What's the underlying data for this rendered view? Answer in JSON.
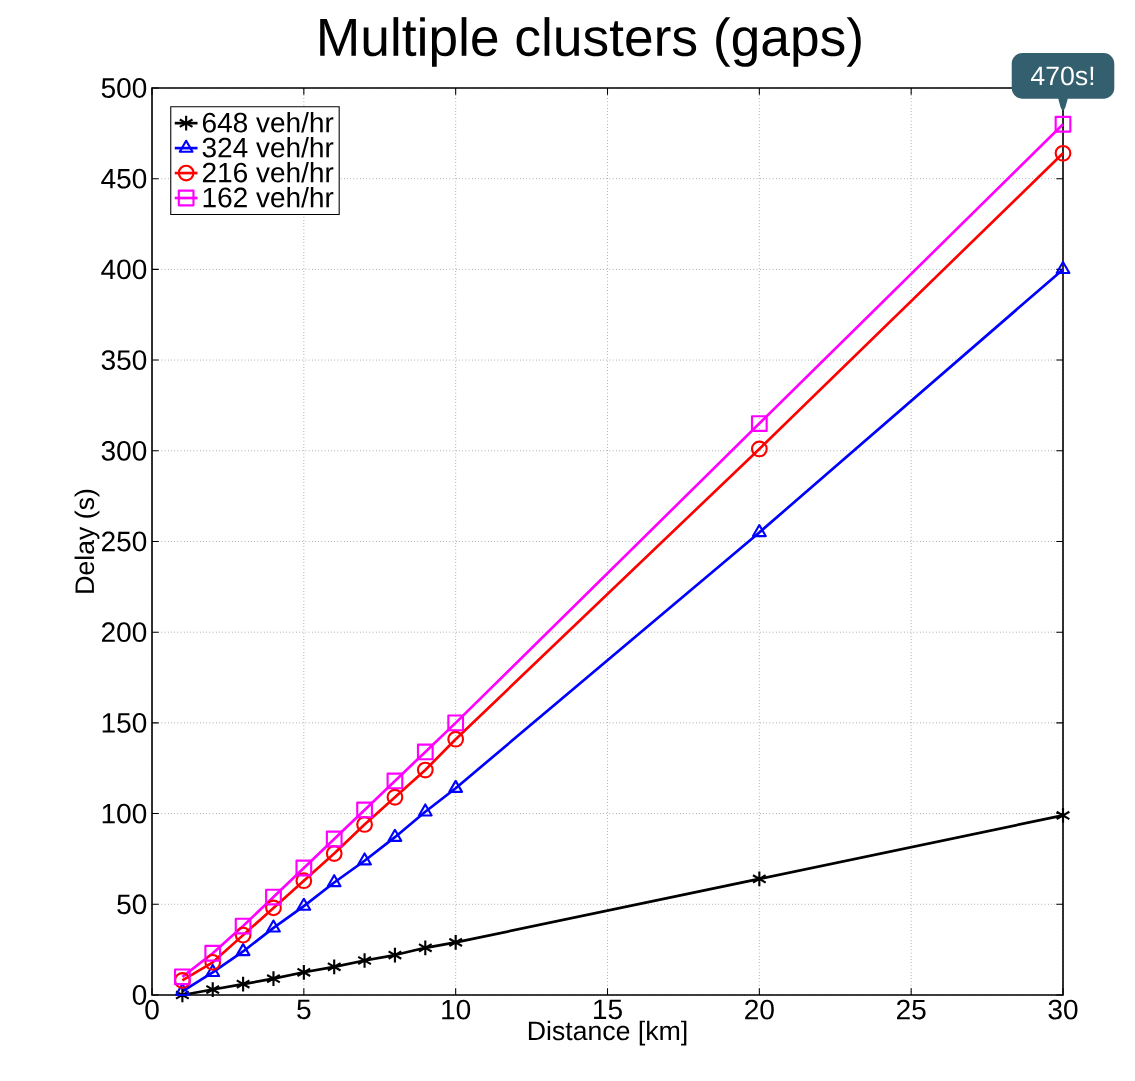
{
  "chart_data": {
    "type": "line",
    "title": "Multiple clusters (gaps)",
    "xlabel": "Distance [km]",
    "ylabel": "Delay (s)",
    "x": [
      1,
      2,
      3,
      4,
      5,
      6,
      7,
      8,
      9,
      10,
      20,
      30
    ],
    "series": [
      {
        "name": "648 veh/hr",
        "color": "#000000",
        "marker": "cross",
        "values": [
          0,
          3,
          6,
          9,
          12.5,
          15.5,
          19,
          22,
          26,
          29,
          64,
          99
        ]
      },
      {
        "name": "324 veh/hr",
        "color": "#0000ff",
        "marker": "triangle",
        "values": [
          2,
          12.5,
          24,
          37,
          49,
          62,
          74,
          87,
          101,
          114,
          255,
          400
        ]
      },
      {
        "name": "216 veh/hr",
        "color": "#ff0000",
        "marker": "circle",
        "values": [
          8,
          18,
          33,
          48,
          63,
          78,
          94,
          109,
          124,
          141,
          301,
          464
        ]
      },
      {
        "name": "162 veh/hr",
        "color": "#ff00ff",
        "marker": "square",
        "values": [
          10,
          23,
          38,
          54,
          70,
          86,
          102,
          118,
          134,
          150,
          315,
          480
        ]
      }
    ],
    "xlim": [
      0,
      30
    ],
    "ylim": [
      0,
      500
    ],
    "xticks": [
      0,
      5,
      10,
      15,
      20,
      25,
      30
    ],
    "yticks": [
      0,
      50,
      100,
      150,
      200,
      250,
      300,
      350,
      400,
      450,
      500
    ],
    "grid": true,
    "legend": "top left",
    "line_style": "solid",
    "annotations": [
      {
        "text": "470s!",
        "x": 30,
        "y": 480
      }
    ]
  }
}
